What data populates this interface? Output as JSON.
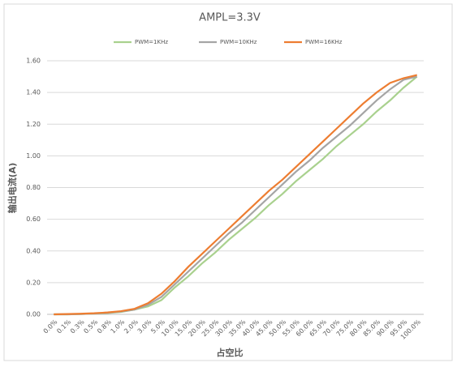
{
  "chart_data": {
    "type": "line",
    "title": "AMPL=3.3V",
    "x_label": "占空比",
    "y_label": "输出电流(A)",
    "categories": [
      "0.0%",
      "0.1%",
      "0.3%",
      "0.5%",
      "0.8%",
      "1.0%",
      "2.0%",
      "3.0%",
      "5.0%",
      "10.0%",
      "15.0%",
      "20.0%",
      "25.0%",
      "30.0%",
      "35.0%",
      "40.0%",
      "45.0%",
      "50.0%",
      "55.0%",
      "60.0%",
      "65.0%",
      "70.0%",
      "75.0%",
      "80.0%",
      "85.0%",
      "90.0%",
      "95.0%",
      "100.0%"
    ],
    "series": [
      {
        "name": "PWM=1KHz",
        "color": "#a9d18e",
        "values": [
          0,
          0,
          0.002,
          0.005,
          0.008,
          0.015,
          0.03,
          0.05,
          0.09,
          0.17,
          0.24,
          0.32,
          0.39,
          0.47,
          0.54,
          0.61,
          0.69,
          0.76,
          0.84,
          0.91,
          0.98,
          1.06,
          1.13,
          1.2,
          1.28,
          1.35,
          1.43,
          1.5
        ]
      },
      {
        "name": "PWM=10KHz",
        "color": "#a5a5a5",
        "values": [
          0,
          0,
          0.002,
          0.005,
          0.01,
          0.018,
          0.03,
          0.06,
          0.11,
          0.19,
          0.27,
          0.35,
          0.43,
          0.51,
          0.58,
          0.66,
          0.74,
          0.82,
          0.9,
          0.97,
          1.05,
          1.12,
          1.19,
          1.27,
          1.35,
          1.42,
          1.48,
          1.5
        ]
      },
      {
        "name": "PWM=16KHz",
        "color": "#ed7d31",
        "values": [
          0,
          0.002,
          0.004,
          0.007,
          0.012,
          0.02,
          0.035,
          0.07,
          0.13,
          0.21,
          0.3,
          0.38,
          0.46,
          0.54,
          0.62,
          0.7,
          0.78,
          0.85,
          0.93,
          1.01,
          1.09,
          1.17,
          1.25,
          1.33,
          1.4,
          1.46,
          1.49,
          1.51
        ]
      }
    ],
    "ylim": [
      0,
      1.6
    ],
    "yticks": [
      {
        "value": 0,
        "label": "0.00"
      },
      {
        "value": 0.2,
        "label": "0.20"
      },
      {
        "value": 0.4,
        "label": "0.40"
      },
      {
        "value": 0.6,
        "label": "0.60"
      },
      {
        "value": 0.8,
        "label": "0.80"
      },
      {
        "value": 1,
        "label": "1.00"
      },
      {
        "value": 1.2,
        "label": "1.20"
      },
      {
        "value": 1.4,
        "label": "1.40"
      },
      {
        "value": 1.6,
        "label": "1.60"
      }
    ],
    "grid": true,
    "legend": "top"
  }
}
